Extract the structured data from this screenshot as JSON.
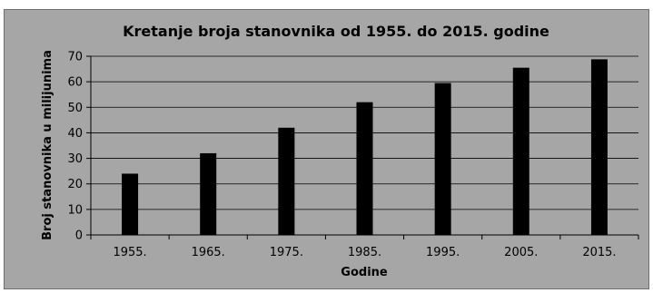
{
  "chart_data": {
    "type": "bar",
    "title": "Kretanje broja stanovnika od 1955. do 2015. godine",
    "xlabel": "Godine",
    "ylabel": "Broj stanovnika u milijunima",
    "categories": [
      "1955.",
      "1965.",
      "1975.",
      "1985.",
      "1995.",
      "2005.",
      "2015."
    ],
    "values": [
      24,
      32,
      42,
      52,
      59.5,
      65.5,
      68.8
    ],
    "ylim": [
      0,
      70
    ],
    "yticks": [
      "0",
      "10",
      "20",
      "30",
      "40",
      "50",
      "60",
      "70"
    ],
    "grid": true,
    "legend": "none",
    "colors": {
      "bar": "#000000",
      "plot_background": "#a6a6a6",
      "gridline": "#000000"
    }
  }
}
